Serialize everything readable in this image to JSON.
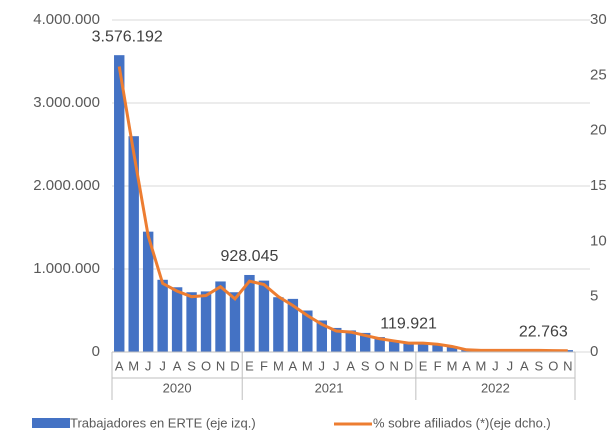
{
  "chart_data": {
    "type": "bar-line",
    "categories": [
      "A",
      "M",
      "J",
      "J",
      "A",
      "S",
      "O",
      "N",
      "D",
      "E",
      "F",
      "M",
      "A",
      "M",
      "J",
      "J",
      "A",
      "S",
      "O",
      "N",
      "D",
      "E",
      "F",
      "M",
      "A",
      "M",
      "J",
      "J",
      "A",
      "S",
      "O",
      "N"
    ],
    "x_groups": [
      {
        "label": "2020",
        "count": 9
      },
      {
        "label": "2021",
        "count": 12
      },
      {
        "label": "2022",
        "count": 11
      }
    ],
    "series": [
      {
        "name": "Trabajadores en ERTE (eje izq.)",
        "type": "bar",
        "color": "#4472c4",
        "values": [
          3576192,
          2600000,
          1450000,
          870000,
          780000,
          720000,
          730000,
          850000,
          720000,
          928045,
          860000,
          660000,
          640000,
          500000,
          380000,
          290000,
          260000,
          230000,
          180000,
          140000,
          119921,
          110000,
          95000,
          70000,
          30000,
          28000,
          25000,
          22000,
          25000,
          25000,
          24000,
          22763
        ],
        "value_labels": [
          "3.576.192",
          null,
          null,
          null,
          null,
          null,
          null,
          null,
          null,
          "928.045",
          null,
          null,
          null,
          null,
          null,
          null,
          null,
          null,
          null,
          null,
          "119.921",
          null,
          null,
          null,
          null,
          null,
          null,
          null,
          null,
          null,
          null,
          "22.763"
        ]
      },
      {
        "name": "% sobre afiliados (*)(eje dcho.)",
        "type": "line",
        "axis": "y2",
        "color": "#ed7d31",
        "values": [
          25.8,
          18,
          10.5,
          6.2,
          5.5,
          5,
          5.1,
          5.9,
          4.8,
          6.4,
          6.1,
          5,
          4.2,
          3.3,
          2.5,
          1.9,
          1.8,
          1.5,
          1.2,
          1.0,
          0.8,
          0.8,
          0.7,
          0.5,
          0.2,
          0.15,
          0.15,
          0.15,
          0.15,
          0.15,
          0.12,
          0.11
        ]
      }
    ],
    "ylim": [
      0,
      4000000
    ],
    "yticks": [
      0,
      {
        "value": 1000000,
        "label": "1.000.000"
      },
      {
        "value": 2000000,
        "label": "2.000.000"
      },
      {
        "value": 3000000,
        "label": "3.000.000"
      },
      {
        "value": 4000000,
        "label": "4.000.000"
      }
    ],
    "y2lim": [
      0,
      30
    ],
    "y2ticks": [
      0,
      5,
      10,
      15,
      20,
      25,
      30
    ],
    "grid": true
  }
}
